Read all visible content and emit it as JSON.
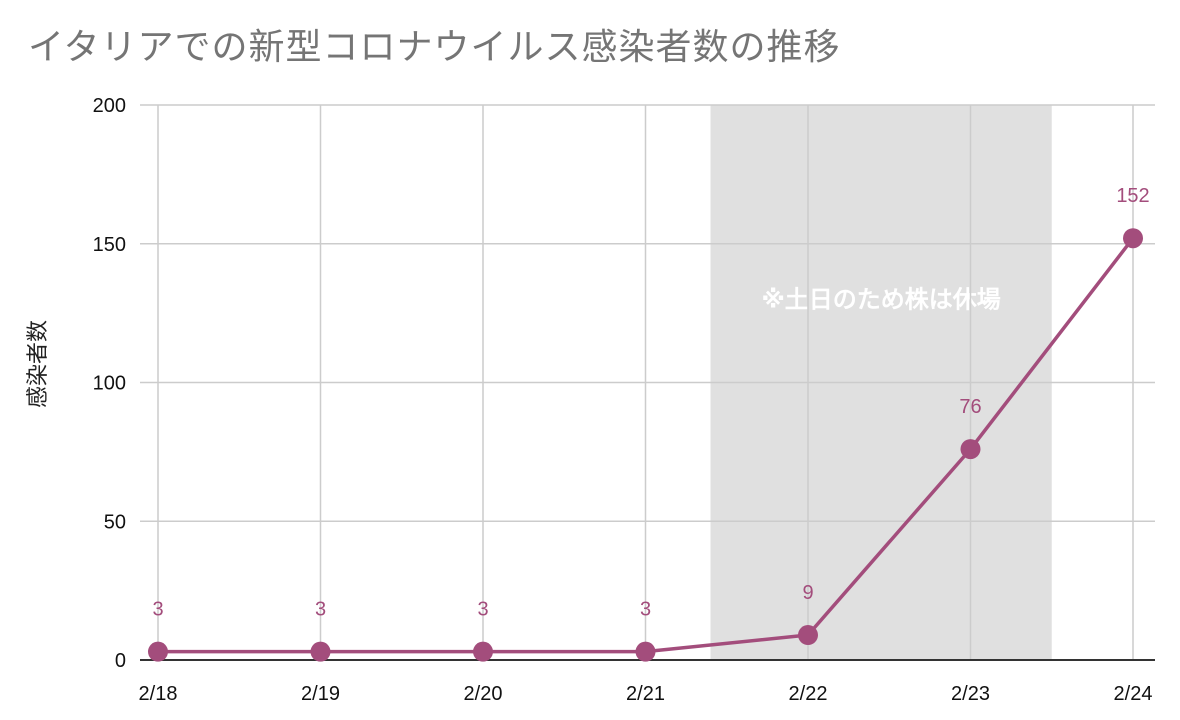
{
  "chart_data": {
    "type": "line",
    "title": "イタリアでの新型コロナウイルス感染者数の推移",
    "xlabel": "",
    "ylabel": "感染者数",
    "categories": [
      "2/18",
      "2/19",
      "2/20",
      "2/21",
      "2/22",
      "2/23",
      "2/24"
    ],
    "series": [
      {
        "values": [
          3,
          3,
          3,
          3,
          9,
          76,
          152
        ],
        "color": "#a34d7c"
      }
    ],
    "ylim": [
      0,
      200
    ],
    "yticks": [
      0,
      50,
      100,
      150,
      200
    ],
    "data_labels": true,
    "grid": true,
    "highlight": {
      "label": "※土日のため株は休場",
      "from_category": "2/22",
      "to_category": "2/23",
      "color": "#e0e0e0"
    },
    "colors": {
      "line": "#a34d7c",
      "grid": "#cccccc",
      "axis": "#333333",
      "title": "#757575"
    }
  }
}
